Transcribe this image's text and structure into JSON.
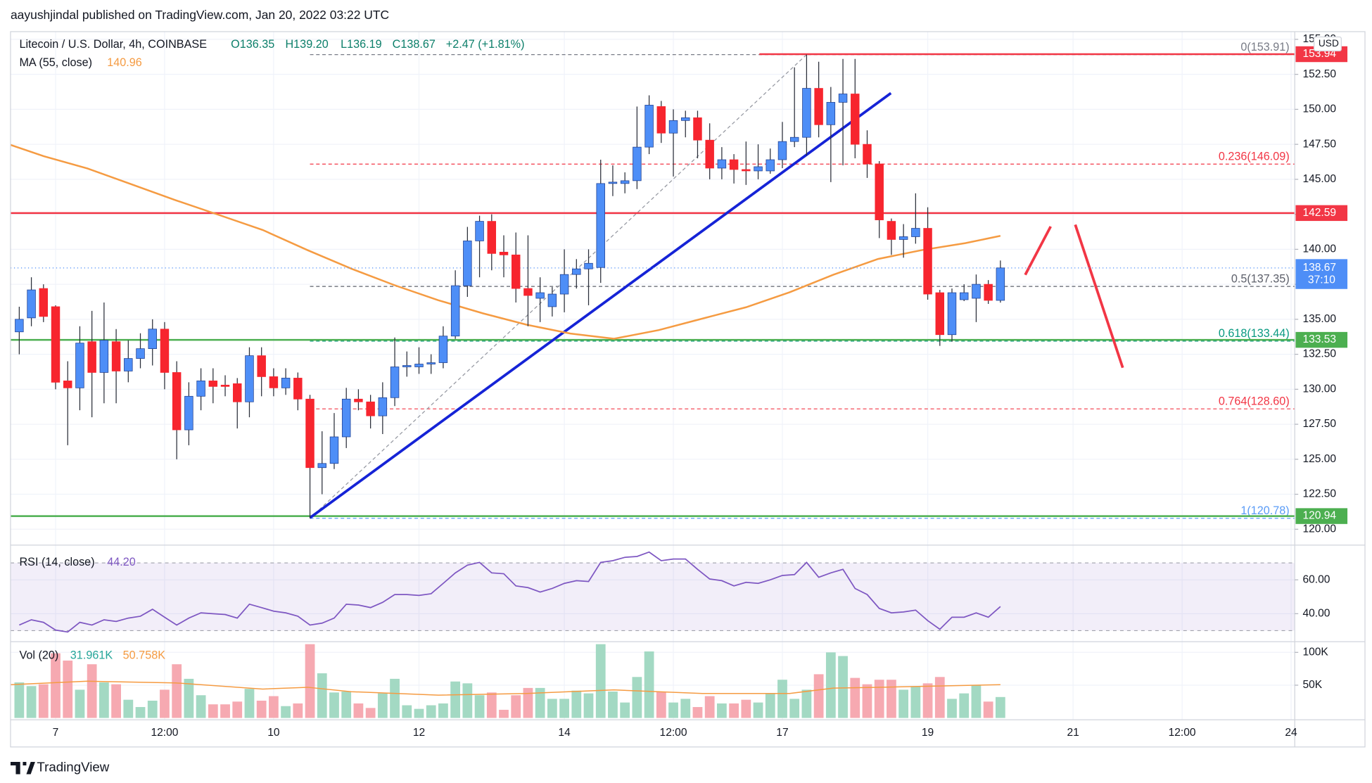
{
  "header": {
    "publisher": "aayushjindal published on TradingView.com, Jan 20, 2022 03:22 UTC",
    "symbol": "Litecoin / U.S. Dollar, 4h, COINBASE",
    "ohlc": [
      "O136.35",
      "H139.20",
      "L136.19",
      "C138.67"
    ],
    "change": "+2.47 (+1.81%)"
  },
  "footer": {
    "brand": "TradingView"
  },
  "chart_data": [
    {
      "type": "candlestick",
      "currency": "USD",
      "countdown": "37:10",
      "up_color": "#4e8ef7",
      "down_color": "#f7252e",
      "wick_color": "#2a2e39",
      "open": [
        134.1,
        135.1,
        137.2,
        135.9,
        130.6,
        130.1,
        133.4,
        131.2,
        133.4,
        131.3,
        132.2,
        132.9,
        134.3,
        131.2,
        127.1,
        129.5,
        130.6,
        130.3,
        130.4,
        129.1,
        132.4,
        130.9,
        130.1,
        130.8,
        129.3,
        124.4,
        124.7,
        126.6,
        129.3,
        129.1,
        128.1,
        129.4,
        131.6,
        131.6,
        131.8,
        131.9,
        133.8,
        137.4,
        140.6,
        142.0,
        139.8,
        139.6,
        137.2,
        136.5,
        135.9,
        136.8,
        138.2,
        138.6,
        138.7,
        144.7,
        144.7,
        144.9,
        147.3,
        150.2,
        148.3,
        149.2,
        149.4,
        147.8,
        145.8,
        146.4,
        145.7,
        145.6,
        145.6,
        146.4,
        147.7,
        148.0,
        151.5,
        148.9,
        150.5,
        151.1,
        147.5,
        146.1,
        142.0,
        140.7,
        140.9,
        141.5,
        136.9,
        133.9,
        136.4,
        136.5,
        137.5,
        136.35
      ],
      "high": [
        135.9,
        138,
        137.5,
        136,
        132,
        134.5,
        135.6,
        136.2,
        134.3,
        133.5,
        134,
        135,
        134.8,
        132,
        130.5,
        131.5,
        131.5,
        131,
        130.8,
        133,
        133,
        131.5,
        131.5,
        131.2,
        129.6,
        127,
        128.3,
        130.1,
        130,
        129.6,
        130.5,
        133.7,
        132.7,
        133,
        132.5,
        134.5,
        138.5,
        141.6,
        142.4,
        142.5,
        141,
        141.2,
        141,
        138,
        137.3,
        140,
        139.3,
        140,
        146.4,
        146,
        145.5,
        150.2,
        151,
        150.6,
        150,
        149.9,
        149.9,
        149,
        147.3,
        146.8,
        147.7,
        147.5,
        147.2,
        149.1,
        153,
        153.91,
        153.4,
        151.6,
        153.6,
        153.6,
        148.5,
        146.3,
        142.2,
        141.8,
        144,
        143,
        137.1,
        137.2,
        137.5,
        138.2,
        137.8,
        139.2
      ],
      "low": [
        132.5,
        134.5,
        134.8,
        130,
        126,
        128.5,
        128,
        129,
        129,
        130.5,
        131.5,
        131.7,
        130,
        125,
        126,
        128.5,
        129,
        129.5,
        127.2,
        128,
        129.5,
        129.5,
        129.6,
        128.5,
        120.78,
        122.5,
        124.3,
        125.8,
        128.5,
        127.2,
        126.8,
        128.8,
        130.9,
        131.1,
        131.1,
        131.5,
        133.6,
        136.6,
        138,
        138.5,
        138,
        136.2,
        134.5,
        134.8,
        135.2,
        135.5,
        137.2,
        136,
        137.6,
        143.8,
        144,
        144.3,
        146.8,
        147.6,
        145.2,
        148,
        146.5,
        145,
        145,
        144.7,
        144.6,
        145,
        145.4,
        145.8,
        147.3,
        146.7,
        148,
        144.8,
        146,
        146.5,
        145.1,
        140.8,
        139.6,
        139.4,
        140.4,
        136.4,
        133.1,
        133.4,
        136.3,
        134.8,
        136.1,
        136.19
      ],
      "close": [
        135.0,
        137.1,
        135.2,
        130.5,
        130.1,
        133.3,
        131.2,
        133.5,
        131.3,
        132.2,
        132.9,
        134.3,
        131.2,
        127.1,
        129.5,
        130.6,
        130.2,
        130.2,
        129.1,
        132.4,
        130.9,
        130.1,
        130.8,
        129.3,
        124.4,
        124.7,
        126.6,
        129.3,
        129.1,
        128.1,
        129.4,
        131.6,
        131.7,
        131.8,
        131.9,
        133.8,
        137.4,
        140.6,
        142.0,
        139.7,
        139.6,
        137.2,
        136.7,
        136.9,
        136.8,
        138.2,
        138.6,
        139.0,
        144.7,
        144.8,
        144.9,
        147.3,
        150.3,
        148.3,
        149.2,
        149.4,
        147.8,
        145.8,
        146.4,
        145.7,
        145.6,
        145.9,
        146.4,
        147.7,
        148.0,
        151.5,
        148.9,
        150.5,
        151.1,
        147.5,
        146.1,
        142.1,
        140.7,
        140.9,
        141.5,
        136.8,
        133.9,
        136.9,
        136.9,
        137.5,
        136.35,
        138.67
      ],
      "xlim": [
        -0.72,
        105.3
      ],
      "xticks": [
        {
          "value": 3,
          "label": "7"
        },
        {
          "value": 12,
          "label": "12:00"
        },
        {
          "value": 21,
          "label": "10"
        },
        {
          "value": 33,
          "label": "12"
        },
        {
          "value": 45,
          "label": "14"
        },
        {
          "value": 54,
          "label": "12:00"
        },
        {
          "value": 63,
          "label": "17"
        },
        {
          "value": 75,
          "label": "19"
        },
        {
          "value": 87,
          "label": "21"
        },
        {
          "value": 96,
          "label": "12:00"
        },
        {
          "value": 105,
          "label": "24"
        }
      ],
      "ylim": [
        118.93,
        155.55
      ],
      "yticks": [
        {
          "value": 120,
          "label": "120.00"
        },
        {
          "value": 122.5,
          "label": "122.50"
        },
        {
          "value": 125,
          "label": "125.00"
        },
        {
          "value": 127.5,
          "label": "127.50"
        },
        {
          "value": 130,
          "label": "130.00"
        },
        {
          "value": 132.5,
          "label": "132.50"
        },
        {
          "value": 135,
          "label": "135.00"
        },
        {
          "value": 137.5,
          "label": "137.50"
        },
        {
          "value": 140,
          "label": "140.00"
        },
        {
          "value": 142.5,
          "label": "142.50"
        },
        {
          "value": 145,
          "label": "145.00"
        },
        {
          "value": 147.5,
          "label": "147.50"
        },
        {
          "value": 150,
          "label": "150.00"
        },
        {
          "value": 152.5,
          "label": "152.50"
        },
        {
          "value": 155,
          "label": "155.00"
        }
      ],
      "grid": true,
      "ma": {
        "name": "MA (55, close)",
        "color": "#f59b42",
        "x": [
          -0.72,
          2.03,
          5.65,
          9.28,
          12.9,
          16.5,
          20.1,
          23.8,
          27.4,
          31.0,
          34.6,
          38.3,
          41.9,
          45.5,
          49.1,
          52.8,
          56.4,
          60.0,
          63.6,
          67.2,
          70.9,
          74.5,
          78.1,
          81
        ],
        "values": [
          147.46,
          146.65,
          145.77,
          144.64,
          143.51,
          142.45,
          141.38,
          139.94,
          138.62,
          137.43,
          136.36,
          135.42,
          134.61,
          133.98,
          133.61,
          134.23,
          135.05,
          135.86,
          136.93,
          138.18,
          139.31,
          139.94,
          140.44,
          140.96
        ]
      },
      "levels": [
        {
          "price": 153.94,
          "color": "#f23645",
          "from": 61.1
        },
        {
          "price": 142.59,
          "color": "#f23645"
        },
        {
          "price": 133.53,
          "color": "#4caf50"
        },
        {
          "price": 120.94,
          "color": "#4caf50"
        }
      ],
      "fib": {
        "x": [
          24,
          65
        ],
        "levels": [
          {
            "label": "0(153.91)",
            "price": 153.91,
            "color": "#787b86"
          },
          {
            "label": "0.236(146.09)",
            "price": 146.09,
            "color": "#f23645"
          },
          {
            "label": "0.5(137.35)",
            "price": 137.35,
            "color": "#5d606b"
          },
          {
            "label": "0.618(133.44)",
            "price": 133.44,
            "color": "#089981"
          },
          {
            "label": "0.764(128.60)",
            "price": 128.6,
            "color": "#f23645"
          },
          {
            "label": "1(120.78)",
            "price": 120.78,
            "color": "#5b9cf6"
          }
        ]
      },
      "trendline": {
        "x": [
          24,
          71.96
        ],
        "y": [
          120.82,
          151.16
        ],
        "color": "#1523d6"
      },
      "arrows": [
        {
          "x": [
            83.05,
            85.15
          ],
          "y": [
            138.18,
            141.63
          ],
          "color": "#f23645"
        },
        {
          "x": [
            87.18,
            91.1
          ],
          "y": [
            141.76,
            131.54
          ],
          "color": "#f23645"
        }
      ],
      "last_color": "#4e8ef7"
    },
    {
      "type": "line",
      "title": "RSI (14, close)",
      "color": "#7e57c2",
      "last_label": "44.20",
      "values": [
        33.3,
        36.4,
        34.9,
        30.3,
        29.2,
        34.9,
        33.3,
        36.4,
        35.4,
        37.4,
        38.5,
        42.6,
        37.9,
        33.3,
        37.4,
        40.5,
        40,
        39.5,
        37.4,
        45.6,
        43.6,
        41.5,
        40.5,
        38.5,
        33.3,
        34.4,
        37.4,
        45.6,
        45.1,
        43.6,
        46.7,
        51.3,
        51.3,
        50.8,
        51.8,
        57.9,
        64.1,
        68.7,
        70.3,
        64.1,
        63.6,
        56.4,
        55.4,
        52.8,
        54.9,
        57.9,
        59.5,
        59,
        70.3,
        71.3,
        73.3,
        73.8,
        76.4,
        71.3,
        72.3,
        72.3,
        66.2,
        60.5,
        59.5,
        56.4,
        58.5,
        57.9,
        60,
        62.6,
        63.1,
        70.3,
        61.5,
        64.1,
        66.2,
        54.9,
        51.3,
        43.1,
        40.5,
        41,
        42.1,
        35.9,
        30.8,
        37.9,
        37.9,
        40.5,
        37.9,
        44.2
      ],
      "band": [
        30,
        70
      ],
      "ylim": [
        24,
        80
      ],
      "yticks": [
        {
          "value": 40,
          "label": "40.00"
        },
        {
          "value": 60,
          "label": "60.00"
        }
      ]
    },
    {
      "type": "bar",
      "title": "Vol (20)",
      "up_color": "#a3d9c3",
      "down_color": "#f6a9b1",
      "last_label": "31.961K",
      "values": [
        54.2,
        48.6,
        51.4,
        98.6,
        87.5,
        43.1,
        81.9,
        54.2,
        51.4,
        27.8,
        16.7,
        26.4,
        43.1,
        81.9,
        59.7,
        34.7,
        20.8,
        20.8,
        25.0,
        44.4,
        26.4,
        33.3,
        18.1,
        22.2,
        112.5,
        68.1,
        38.9,
        40.3,
        22.2,
        15.3,
        37.5,
        59.7,
        19.4,
        13.9,
        19.4,
        22.2,
        55.6,
        52.8,
        34.7,
        38.9,
        12.5,
        34.7,
        45.8,
        45.8,
        29.2,
        29.2,
        41.7,
        37.5,
        112.5,
        40.3,
        23.6,
        62.5,
        101.4,
        40.3,
        23.6,
        29.2,
        16.7,
        33.3,
        22.2,
        22.2,
        27.8,
        23.6,
        37.5,
        58.3,
        29.2,
        43.1,
        66.7,
        100,
        94.4,
        61.1,
        51.4,
        58.3,
        58.3,
        43.1,
        48.6,
        52.8,
        62.5,
        29.2,
        37.5,
        50.0,
        25.0,
        31.961
      ],
      "ma": {
        "color": "#f59b42",
        "label": "50.758K",
        "x": [
          -0.72,
          5.65,
          12.9,
          20.1,
          23.8,
          27.4,
          34.6,
          41.9,
          49.1,
          56.4,
          63.6,
          67.2,
          70.9,
          81
        ],
        "values": [
          50.8,
          56.1,
          53.5,
          44.1,
          46.8,
          40.1,
          34.8,
          37.4,
          42.8,
          37.4,
          37.4,
          45.5,
          46.8,
          50.758
        ]
      },
      "ylim": [
        0,
        115
      ],
      "yticks": [
        {
          "value": 50,
          "label": "50K"
        },
        {
          "value": 100,
          "label": "100K"
        }
      ]
    }
  ]
}
